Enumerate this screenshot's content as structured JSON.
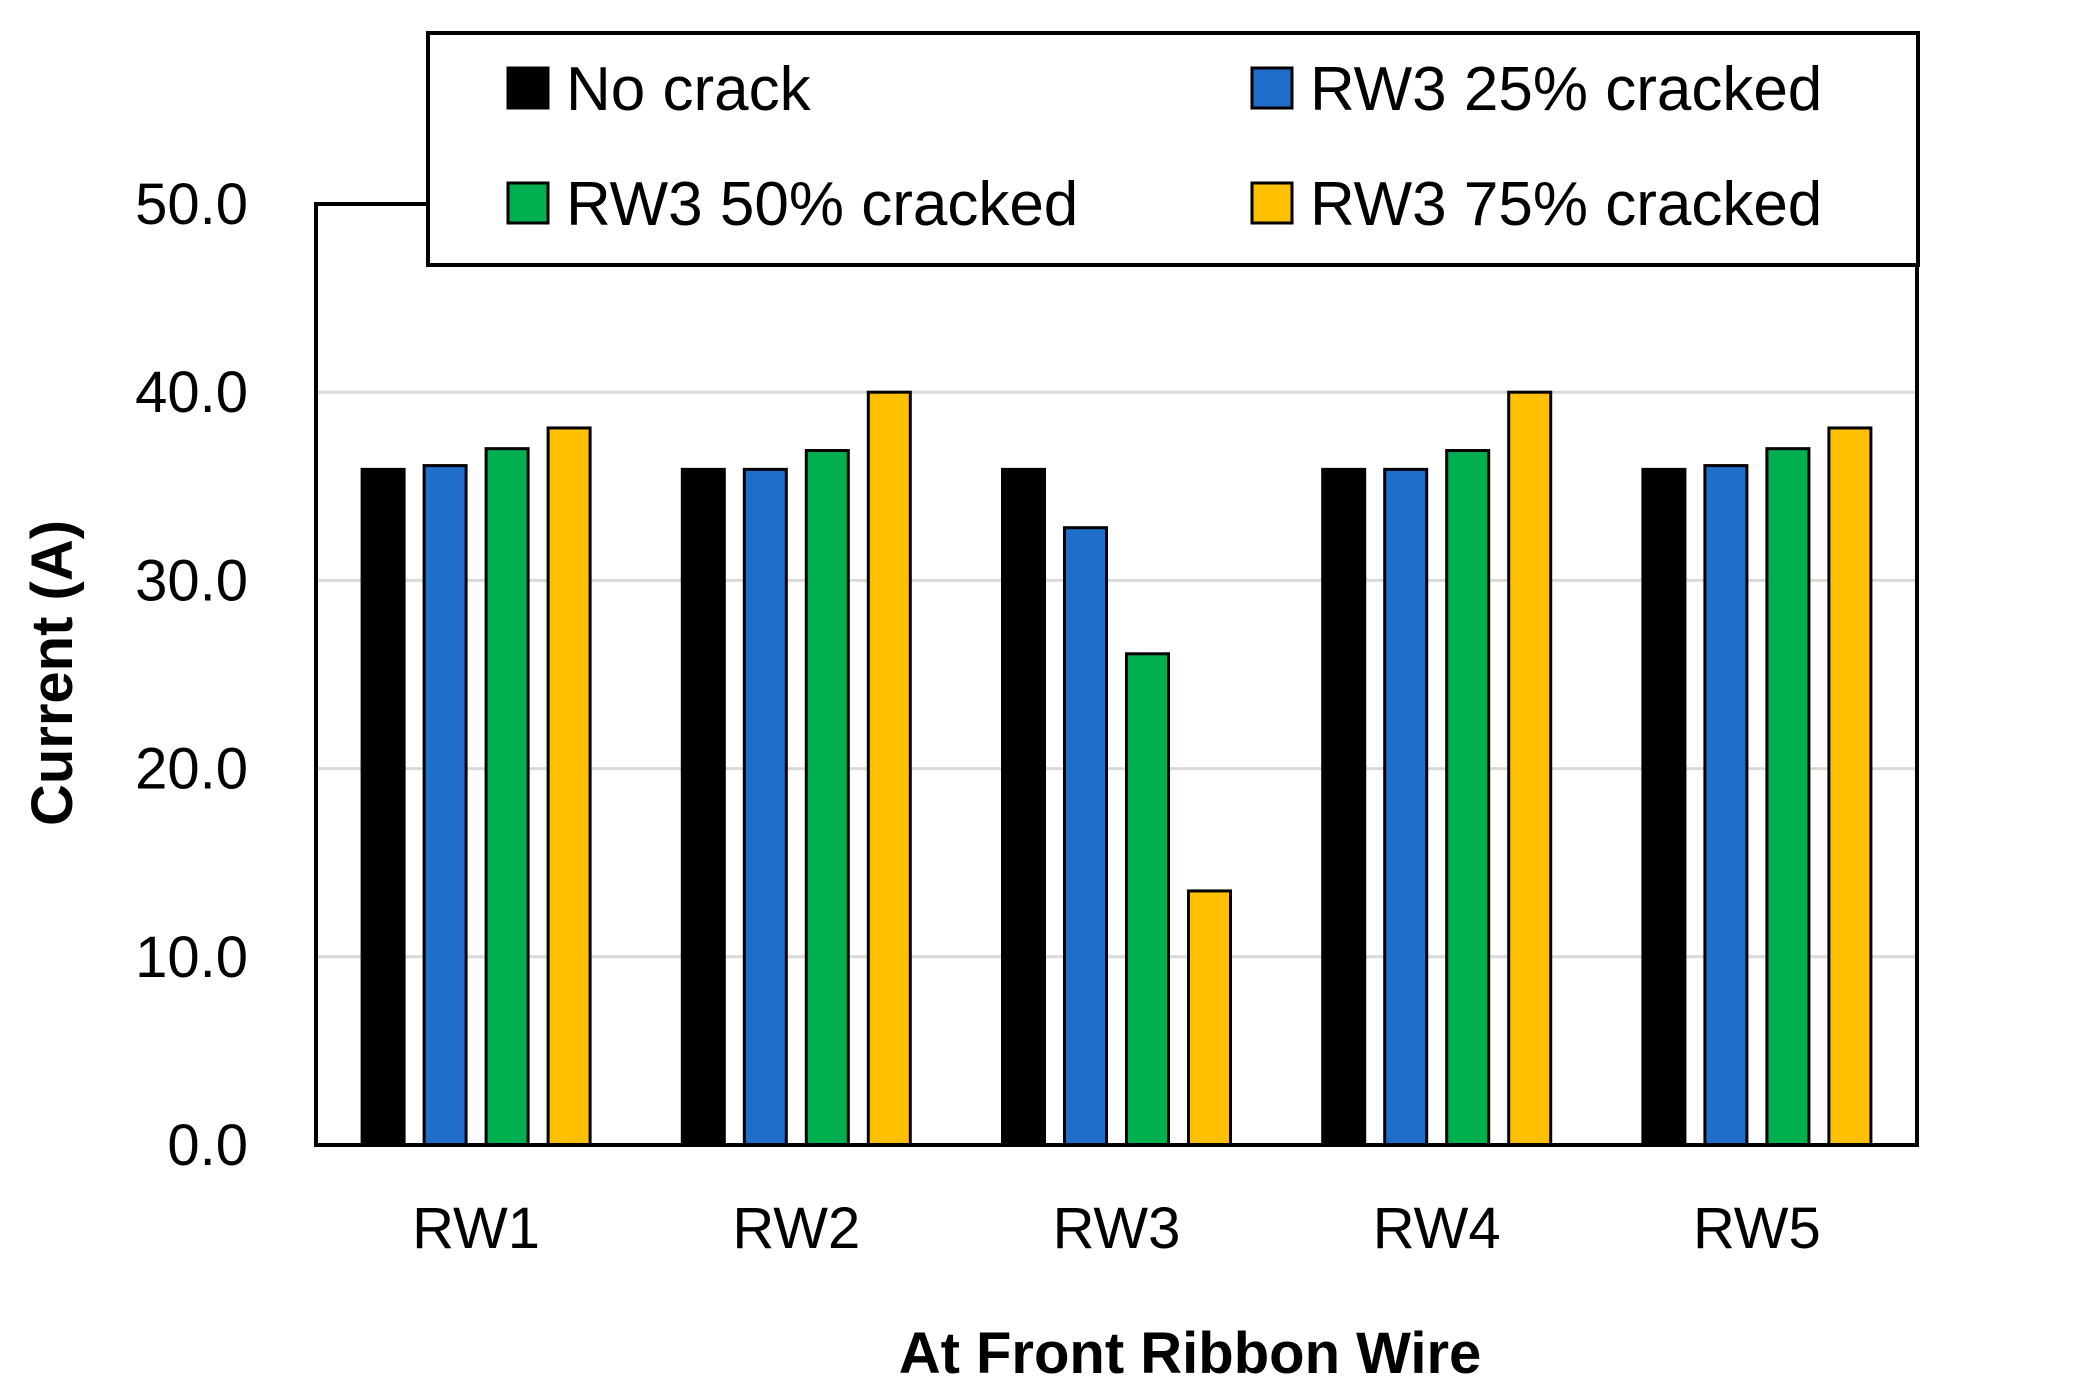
{
  "chart_data": {
    "type": "bar",
    "title": "",
    "xlabel": "At Front Ribbon Wire",
    "ylabel": "Current (A)",
    "ylim": [
      0,
      50
    ],
    "yticks": [
      0,
      10,
      20,
      30,
      40,
      50
    ],
    "ytick_labels": [
      "0.0",
      "10.0",
      "20.0",
      "30.0",
      "40.0",
      "50.0"
    ],
    "grid": true,
    "legend_position": "top",
    "categories": [
      "RW1",
      "RW2",
      "RW3",
      "RW4",
      "RW5"
    ],
    "series": [
      {
        "name": "No crack",
        "color": "#000000",
        "values": [
          35.9,
          35.9,
          35.9,
          35.9,
          35.9
        ]
      },
      {
        "name": "RW3 25% cracked",
        "color": "#1f6fca",
        "values": [
          36.1,
          35.9,
          32.8,
          35.9,
          36.1
        ]
      },
      {
        "name": "RW3 50% cracked",
        "color": "#00b050",
        "values": [
          37.0,
          36.9,
          26.1,
          36.9,
          37.0
        ]
      },
      {
        "name": "RW3 75% cracked",
        "color": "#ffc000",
        "values": [
          38.1,
          40.0,
          13.5,
          40.0,
          38.1
        ]
      }
    ]
  }
}
